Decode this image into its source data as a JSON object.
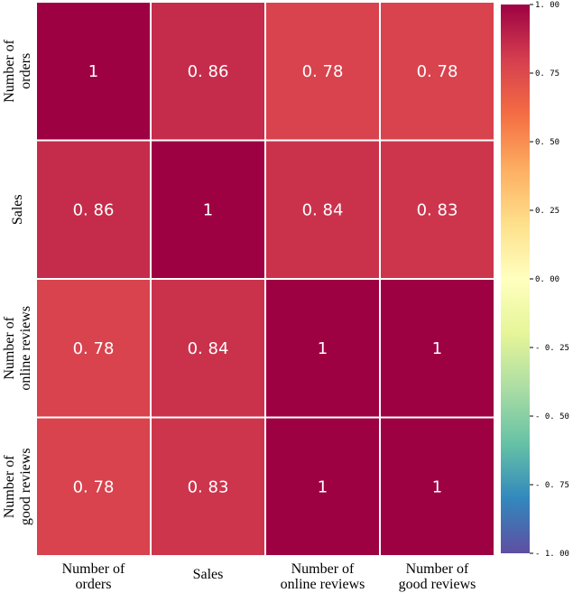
{
  "chart_data": {
    "type": "heatmap",
    "title": "",
    "row_labels": [
      [
        "Number of",
        "orders"
      ],
      [
        "Sales"
      ],
      [
        "Number of",
        "online reviews"
      ],
      [
        "Number of",
        "good reviews"
      ]
    ],
    "col_labels": [
      [
        "Number of",
        "orders"
      ],
      [
        "Sales"
      ],
      [
        "Number of",
        "online reviews"
      ],
      [
        "Number of",
        "good reviews"
      ]
    ],
    "values": [
      [
        1,
        0.86,
        0.78,
        0.78
      ],
      [
        0.86,
        1,
        0.84,
        0.83
      ],
      [
        0.78,
        0.84,
        1,
        1
      ],
      [
        0.78,
        0.83,
        1,
        1
      ]
    ],
    "cell_labels": [
      [
        "1",
        "0. 86",
        "0. 78",
        "0. 78"
      ],
      [
        "0. 86",
        "1",
        "0. 84",
        "0. 83"
      ],
      [
        "0. 78",
        "0. 84",
        "1",
        "1"
      ],
      [
        "0. 78",
        "0. 83",
        "1",
        "1"
      ]
    ],
    "colormap": "Spectral_r",
    "vmin": -1,
    "vmax": 1,
    "colorbar_ticks": [
      1.0,
      0.75,
      0.5,
      0.25,
      0.0,
      -0.25,
      -0.5,
      -0.75,
      -1.0
    ],
    "colorbar_tick_labels": [
      "1. 00",
      "0. 75",
      "0. 50",
      "0. 25",
      "0. 00",
      "- 0. 25",
      "- 0. 50",
      "- 0. 75",
      "- 1. 00"
    ]
  }
}
